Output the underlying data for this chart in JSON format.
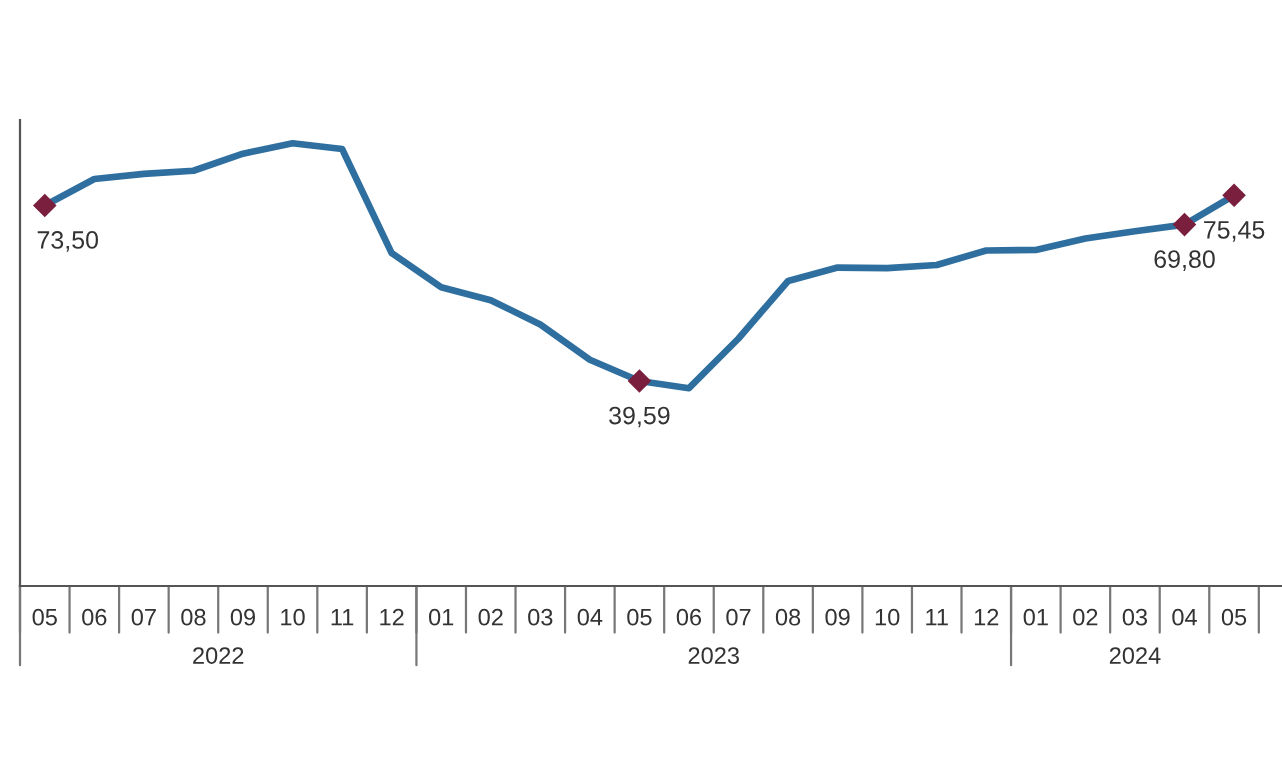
{
  "chart_data": {
    "type": "line",
    "x": [
      "2022-05",
      "2022-06",
      "2022-07",
      "2022-08",
      "2022-09",
      "2022-10",
      "2022-11",
      "2022-12",
      "2023-01",
      "2023-02",
      "2023-03",
      "2023-04",
      "2023-05",
      "2023-06",
      "2023-07",
      "2023-08",
      "2023-09",
      "2023-10",
      "2023-11",
      "2023-12",
      "2024-01",
      "2024-02",
      "2024-03",
      "2024-04",
      "2024-05"
    ],
    "series": [
      {
        "color": "#2f6f9f",
        "values": [
          73.5,
          78.6,
          79.6,
          80.2,
          83.5,
          85.5,
          84.4,
          64.3,
          57.7,
          55.2,
          50.5,
          43.7,
          39.59,
          38.2,
          47.8,
          58.9,
          61.5,
          61.4,
          62.0,
          64.8,
          64.9,
          67.1,
          68.5,
          69.8,
          75.45
        ],
        "value_labels": [
          "73,50",
          null,
          null,
          null,
          null,
          null,
          null,
          null,
          null,
          null,
          null,
          null,
          "39,59",
          null,
          null,
          null,
          null,
          null,
          null,
          null,
          null,
          null,
          null,
          "69,80",
          "75,45"
        ]
      }
    ],
    "xlim": [
      "2022-04-16",
      "2024-05-31"
    ],
    "xticks": [
      {
        "value": "2022-05",
        "label": "05"
      },
      {
        "value": "2022-06",
        "label": "06"
      },
      {
        "value": "2022-07",
        "label": "07"
      },
      {
        "value": "2022-08",
        "label": "08"
      },
      {
        "value": "2022-09",
        "label": "09"
      },
      {
        "value": "2022-10",
        "label": "10"
      },
      {
        "value": "2022-11",
        "label": "11"
      },
      {
        "value": "2022-12",
        "label": "12"
      },
      {
        "value": "2023-01",
        "label": "01"
      },
      {
        "value": "2023-02",
        "label": "02"
      },
      {
        "value": "2023-03",
        "label": "03"
      },
      {
        "value": "2023-04",
        "label": "04"
      },
      {
        "value": "2023-05",
        "label": "05"
      },
      {
        "value": "2023-06",
        "label": "06"
      },
      {
        "value": "2023-07",
        "label": "07"
      },
      {
        "value": "2023-08",
        "label": "08"
      },
      {
        "value": "2023-09",
        "label": "09"
      },
      {
        "value": "2023-10",
        "label": "10"
      },
      {
        "value": "2023-11",
        "label": "11"
      },
      {
        "value": "2023-12",
        "label": "12"
      },
      {
        "value": "2024-01",
        "label": "01"
      },
      {
        "value": "2024-02",
        "label": "02"
      },
      {
        "value": "2024-03",
        "label": "03"
      },
      {
        "value": "2024-04",
        "label": "04"
      },
      {
        "value": "2024-05",
        "label": "05"
      }
    ],
    "ylim": [
      0,
      90
    ],
    "annotations": [
      "2022",
      "2023",
      "2024"
    ],
    "grid": false
  }
}
